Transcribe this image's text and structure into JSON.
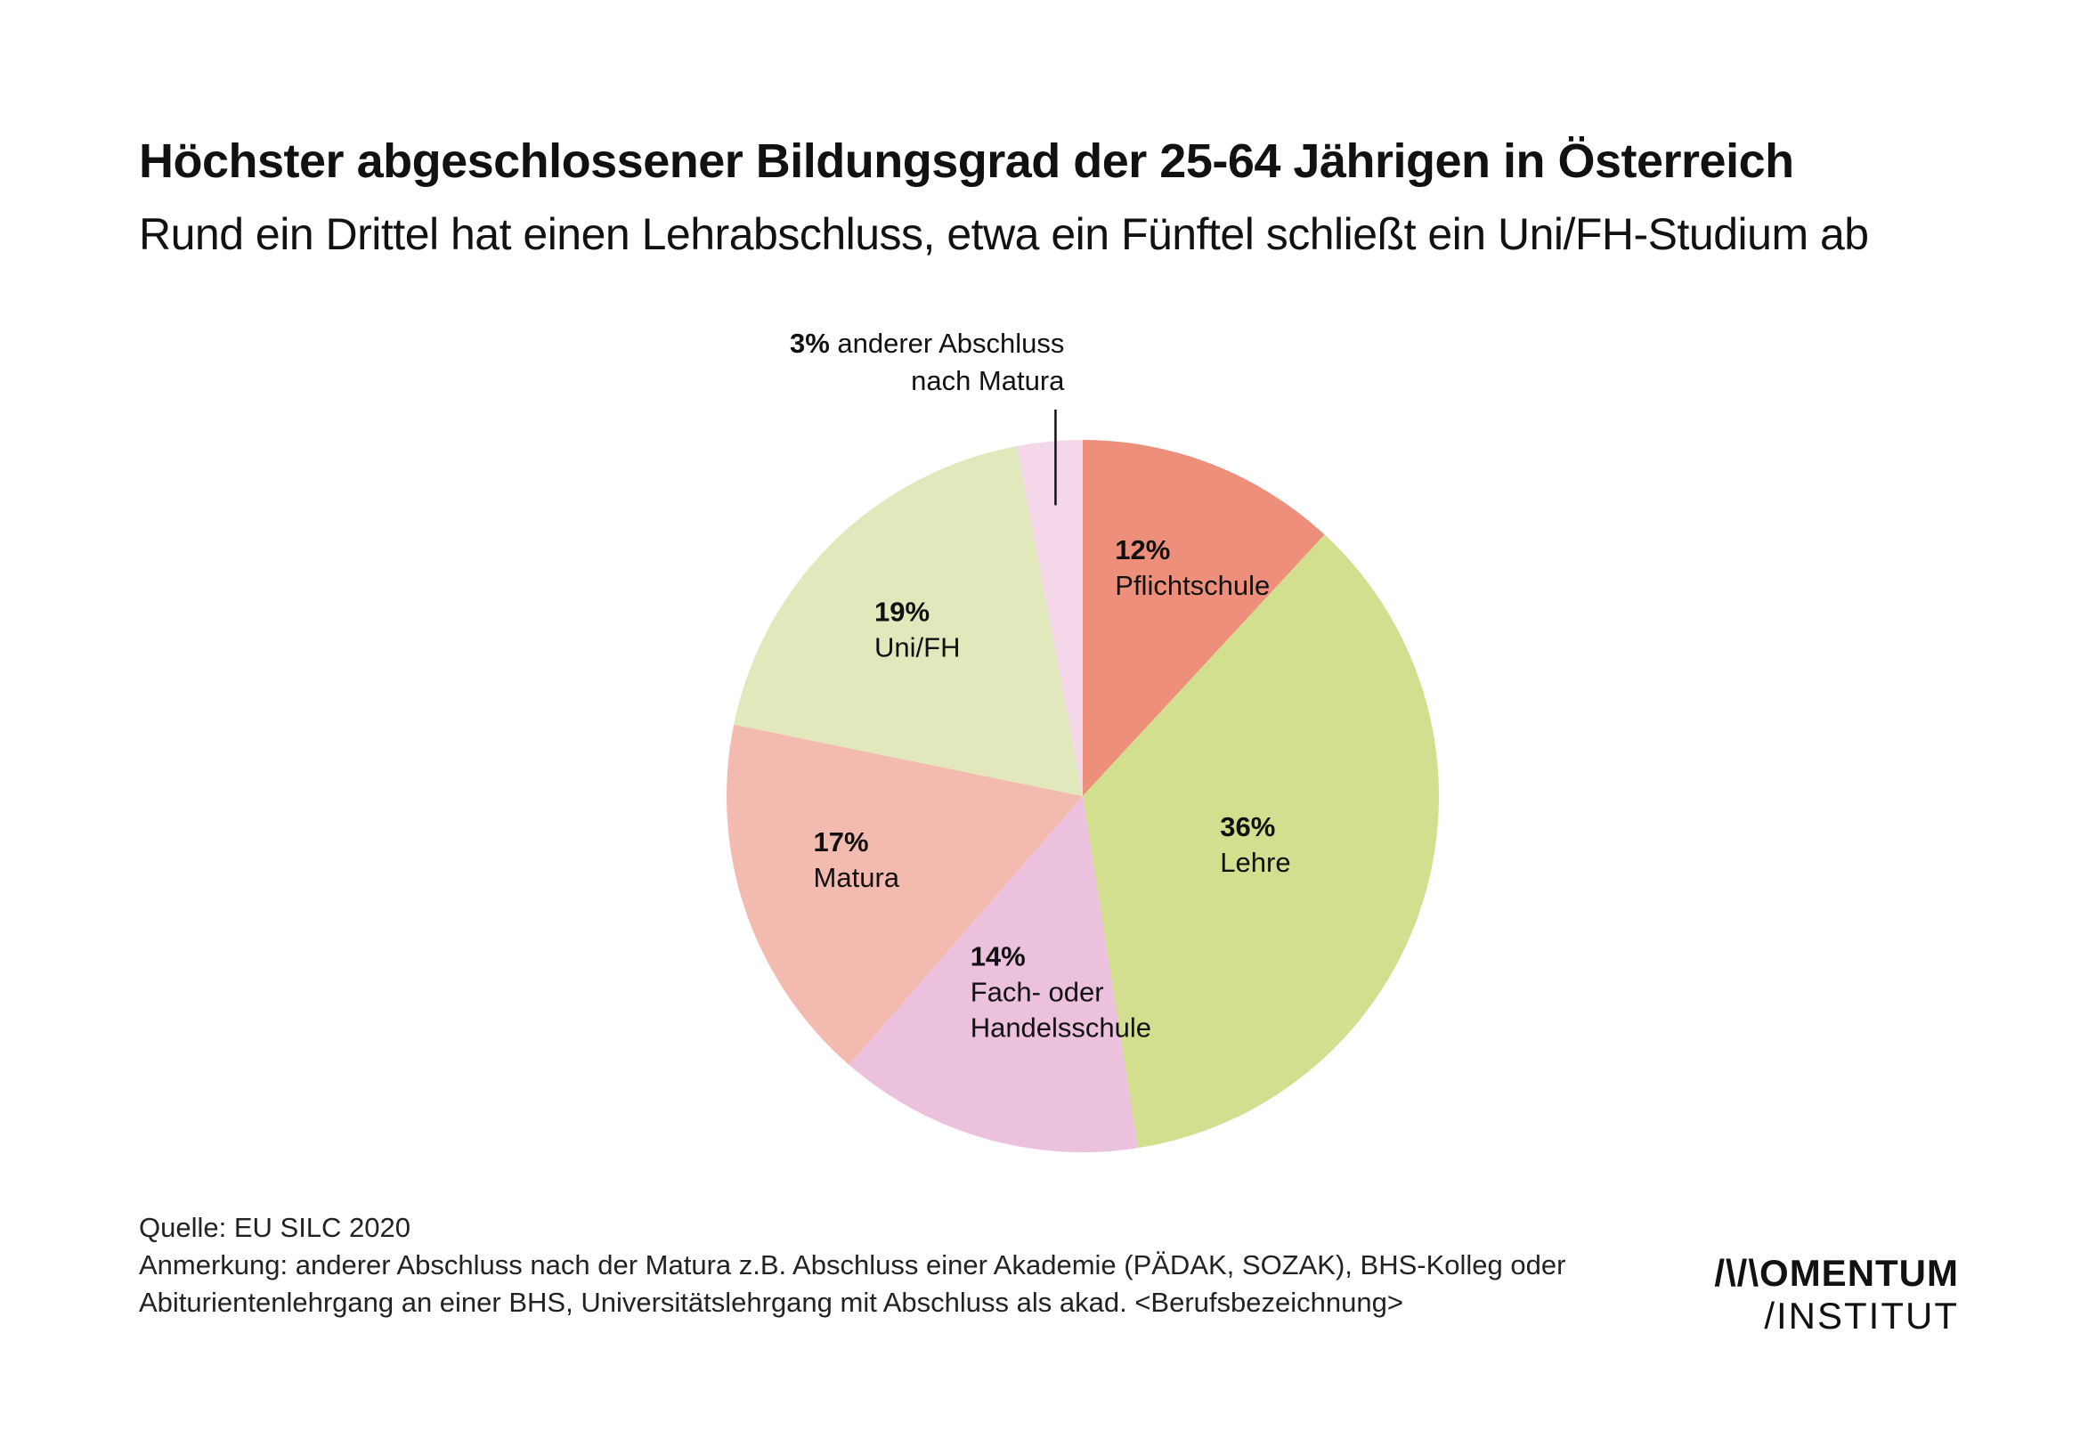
{
  "header": {
    "title": "Höchster abgeschlossener Bildungsgrad der 25-64 Jährigen in Österreich",
    "subtitle": "Rund ein Drittel hat einen Lehrabschluss, etwa ein Fünftel schließt ein Uni/FH-Studium ab"
  },
  "chart_data": {
    "type": "pie",
    "title": "Höchster abgeschlossener Bildungsgrad der 25-64 Jährigen in Österreich",
    "start": "12 o'clock",
    "direction": "clockwise",
    "slices": [
      {
        "pct_label": "12%",
        "name_lines": [
          "Pflichtschule"
        ],
        "value": 12,
        "color": "#ee8f7b"
      },
      {
        "pct_label": "36%",
        "name_lines": [
          "Lehre"
        ],
        "value": 36,
        "color": "#d1df8f"
      },
      {
        "pct_label": "14%",
        "name_lines": [
          "Fach- oder",
          "Handelsschule"
        ],
        "value": 14,
        "color": "#ecc1dd"
      },
      {
        "pct_label": "17%",
        "name_lines": [
          "Matura"
        ],
        "value": 17,
        "color": "#f3bbb0"
      },
      {
        "pct_label": "19%",
        "name_lines": [
          "Uni/FH"
        ],
        "value": 19,
        "color": "#e1e9bc"
      },
      {
        "pct_label": "3%",
        "name_lines": [
          "anderer Abschluss",
          "nach Matura"
        ],
        "value": 3,
        "color": "#f4d8ea",
        "callout": true
      }
    ]
  },
  "footer": {
    "source": "Quelle: EU SILC 2020",
    "note": "Anmerkung: anderer Abschluss nach der Matura z.B. Abschluss einer Akademie (PÄDAK, SOZAK), BHS-Kolleg oder Abiturientenlehrgang an einer BHS, Universitätslehrgang mit Abschluss als akad. <Berufsbezeichnung>"
  },
  "logo": {
    "line1": "/\\/\\OMENTUM",
    "line2": "/INSTITUT"
  }
}
